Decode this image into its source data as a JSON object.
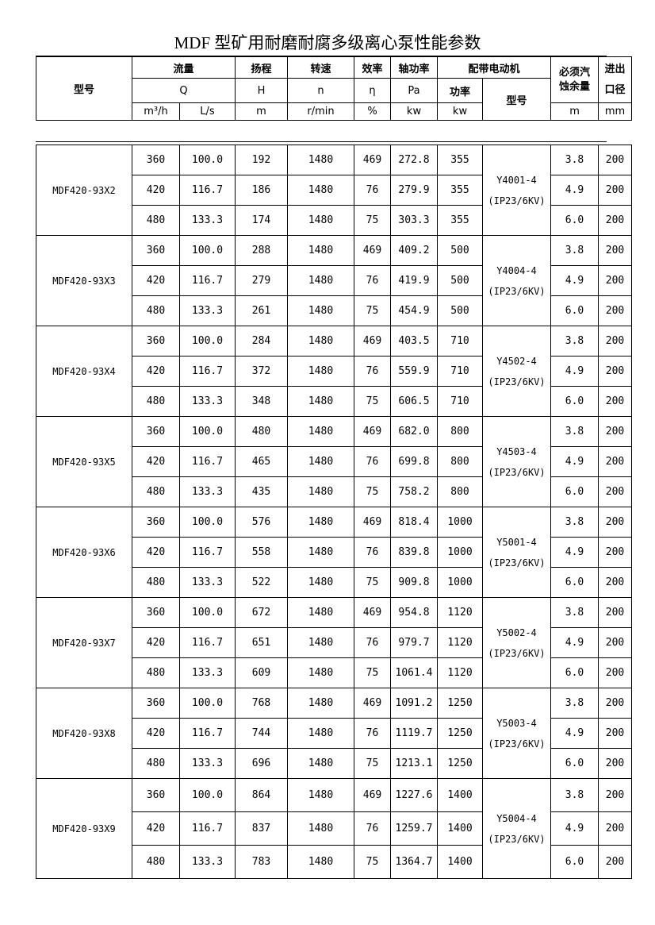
{
  "title": "MDF 型矿用耐磨耐腐多级离心泵性能参数",
  "header": {
    "model": "型号",
    "flow": "流量",
    "flow_sym": "Q",
    "flow_unit1": "m³/h",
    "flow_unit2": "L/s",
    "head": "扬程",
    "head_sym": "H",
    "head_unit": "m",
    "speed": "转速",
    "speed_sym": "n",
    "speed_unit": "r/min",
    "eff": "效率",
    "eff_sym": "η",
    "eff_unit": "%",
    "shaft": "轴功率",
    "shaft_sym": "Pa",
    "shaft_unit": "kw",
    "motor": "配带电动机",
    "motor_power": "功率",
    "motor_power_unit": "kw",
    "motor_model": "型号",
    "npsh": "必须汽蚀余量",
    "npsh_unit": "m",
    "dia": "进出口径",
    "dia_unit": "mm"
  },
  "groups": [
    {
      "model": "MDF420-93X2",
      "motor": "Y4001-4",
      "motor_spec": "(IP23/6KV)",
      "rows": [
        [
          "360",
          "100.0",
          "192",
          "1480",
          "469",
          "272.8",
          "355",
          "3.8",
          "200"
        ],
        [
          "420",
          "116.7",
          "186",
          "1480",
          "76",
          "279.9",
          "355",
          "4.9",
          "200"
        ],
        [
          "480",
          "133.3",
          "174",
          "1480",
          "75",
          "303.3",
          "355",
          "6.0",
          "200"
        ]
      ]
    },
    {
      "model": "MDF420-93X3",
      "motor": "Y4004-4",
      "motor_spec": "(IP23/6KV)",
      "rows": [
        [
          "360",
          "100.0",
          "288",
          "1480",
          "469",
          "409.2",
          "500",
          "3.8",
          "200"
        ],
        [
          "420",
          "116.7",
          "279",
          "1480",
          "76",
          "419.9",
          "500",
          "4.9",
          "200"
        ],
        [
          "480",
          "133.3",
          "261",
          "1480",
          "75",
          "454.9",
          "500",
          "6.0",
          "200"
        ]
      ]
    },
    {
      "model": "MDF420-93X4",
      "motor": "Y4502-4",
      "motor_spec": "(IP23/6KV)",
      "rows": [
        [
          "360",
          "100.0",
          "284",
          "1480",
          "469",
          "403.5",
          "710",
          "3.8",
          "200"
        ],
        [
          "420",
          "116.7",
          "372",
          "1480",
          "76",
          "559.9",
          "710",
          "4.9",
          "200"
        ],
        [
          "480",
          "133.3",
          "348",
          "1480",
          "75",
          "606.5",
          "710",
          "6.0",
          "200"
        ]
      ]
    },
    {
      "model": "MDF420-93X5",
      "motor": "Y4503-4",
      "motor_spec": "(IP23/6KV)",
      "rows": [
        [
          "360",
          "100.0",
          "480",
          "1480",
          "469",
          "682.0",
          "800",
          "3.8",
          "200"
        ],
        [
          "420",
          "116.7",
          "465",
          "1480",
          "76",
          "699.8",
          "800",
          "4.9",
          "200"
        ],
        [
          "480",
          "133.3",
          "435",
          "1480",
          "75",
          "758.2",
          "800",
          "6.0",
          "200"
        ]
      ]
    },
    {
      "model": "MDF420-93X6",
      "motor": "Y5001-4",
      "motor_spec": "(IP23/6KV)",
      "rows": [
        [
          "360",
          "100.0",
          "576",
          "1480",
          "469",
          "818.4",
          "1000",
          "3.8",
          "200"
        ],
        [
          "420",
          "116.7",
          "558",
          "1480",
          "76",
          "839.8",
          "1000",
          "4.9",
          "200"
        ],
        [
          "480",
          "133.3",
          "522",
          "1480",
          "75",
          "909.8",
          "1000",
          "6.0",
          "200"
        ]
      ]
    },
    {
      "model": "MDF420-93X7",
      "motor": "Y5002-4",
      "motor_spec": "(IP23/6KV)",
      "rows": [
        [
          "360",
          "100.0",
          "672",
          "1480",
          "469",
          "954.8",
          "1120",
          "3.8",
          "200"
        ],
        [
          "420",
          "116.7",
          "651",
          "1480",
          "76",
          "979.7",
          "1120",
          "4.9",
          "200"
        ],
        [
          "480",
          "133.3",
          "609",
          "1480",
          "75",
          "1061.4",
          "1120",
          "6.0",
          "200"
        ]
      ]
    },
    {
      "model": "MDF420-93X8",
      "motor": "Y5003-4",
      "motor_spec": "(IP23/6KV)",
      "rows": [
        [
          "360",
          "100.0",
          "768",
          "1480",
          "469",
          "1091.2",
          "1250",
          "3.8",
          "200"
        ],
        [
          "420",
          "116.7",
          "744",
          "1480",
          "76",
          "1119.7",
          "1250",
          "4.9",
          "200"
        ],
        [
          "480",
          "133.3",
          "696",
          "1480",
          "75",
          "1213.1",
          "1250",
          "6.0",
          "200"
        ]
      ]
    },
    {
      "model": "MDF420-93X9",
      "motor": "Y5004-4",
      "motor_spec": "(IP23/6KV)",
      "rows": [
        [
          "360",
          "100.0",
          "864",
          "1480",
          "469",
          "1227.6",
          "1400",
          "3.8",
          "200"
        ],
        [
          "420",
          "116.7",
          "837",
          "1480",
          "76",
          "1259.7",
          "1400",
          "4.9",
          "200"
        ],
        [
          "480",
          "133.3",
          "783",
          "1480",
          "75",
          "1364.7",
          "1400",
          "6.0",
          "200"
        ]
      ]
    }
  ]
}
